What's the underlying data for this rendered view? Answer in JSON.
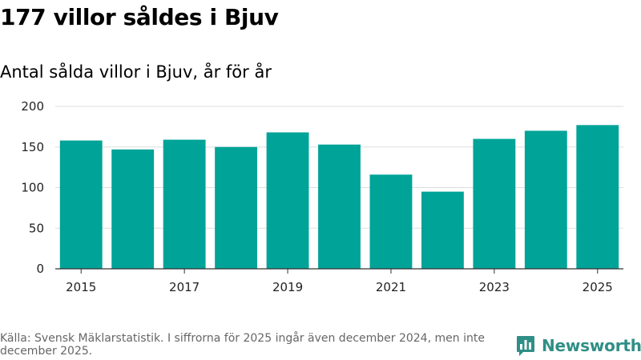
{
  "title": "177 villor såldes i Bjuv",
  "subtitle": "Antal sålda villor i Bjuv, år för år",
  "footer": {
    "source_text": "Källa: Svensk Mäklarstatistik. I siffrorna för 2025 ingår även december 2024, men inte december 2025."
  },
  "brand": {
    "name": "Newsworthy",
    "color": "#2f8f86"
  },
  "colors": {
    "bar": "#00a398",
    "grid": "#dddddd",
    "axis": "#333333"
  },
  "chart_data": {
    "type": "bar",
    "title": "177 villor såldes i Bjuv",
    "subtitle": "Antal sålda villor i Bjuv, år för år",
    "categories": [
      "2015",
      "2016",
      "2017",
      "2018",
      "2019",
      "2020",
      "2021",
      "2022",
      "2023",
      "2024",
      "2025"
    ],
    "values": [
      158,
      147,
      159,
      150,
      168,
      153,
      116,
      95,
      160,
      170,
      177
    ],
    "xticks": [
      "2015",
      "2017",
      "2019",
      "2021",
      "2023",
      "2025"
    ],
    "yticks": [
      "0",
      "50",
      "100",
      "150",
      "200"
    ],
    "ylim": [
      0,
      200
    ],
    "xlabel": "",
    "ylabel": "",
    "grid": true,
    "legend": "none"
  }
}
